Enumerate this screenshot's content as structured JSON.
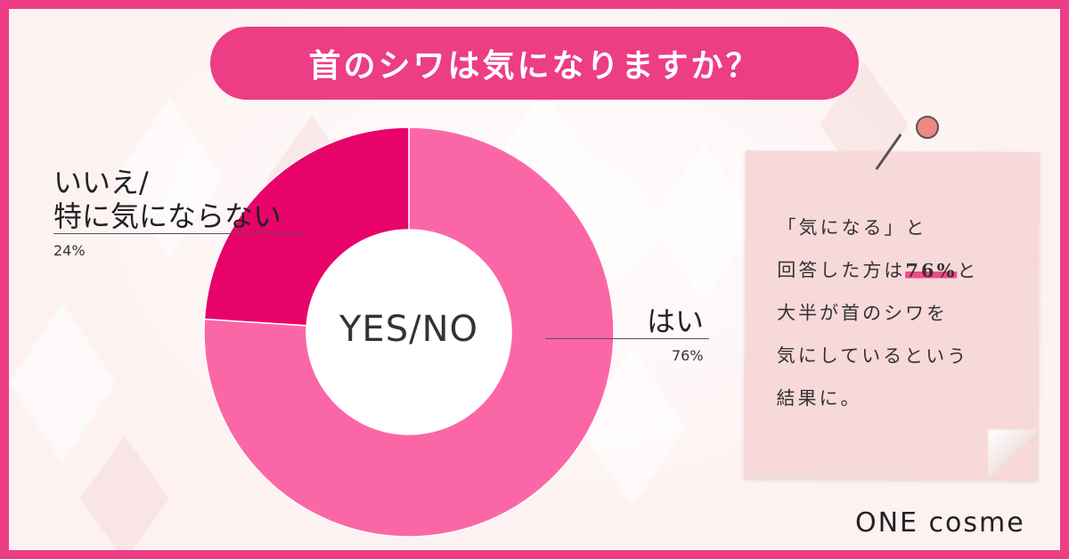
{
  "title": "首のシワは気になりますか？",
  "chart_data": {
    "type": "pie",
    "center_label": "YES/NO",
    "slices": [
      {
        "label": "はい",
        "value": 76,
        "value_label": "76%",
        "color": "#fb67a6"
      },
      {
        "label_lines": [
          "いいえ/",
          "特に気にならない"
        ],
        "value": 24,
        "value_label": "24%",
        "color": "#e8036a"
      }
    ]
  },
  "note": {
    "line1": "「気になる」と",
    "line2_pre": "回答した方は",
    "line2_highlight": "76%",
    "line2_post": "と",
    "line3": "大半が首のシワを",
    "line4": "気にしているという",
    "line5": "結果に。"
  },
  "logo": "ONE cosme",
  "colors": {
    "border": "#ec3d85",
    "background": "#fdf1f1",
    "note": "#f8d9d9"
  }
}
